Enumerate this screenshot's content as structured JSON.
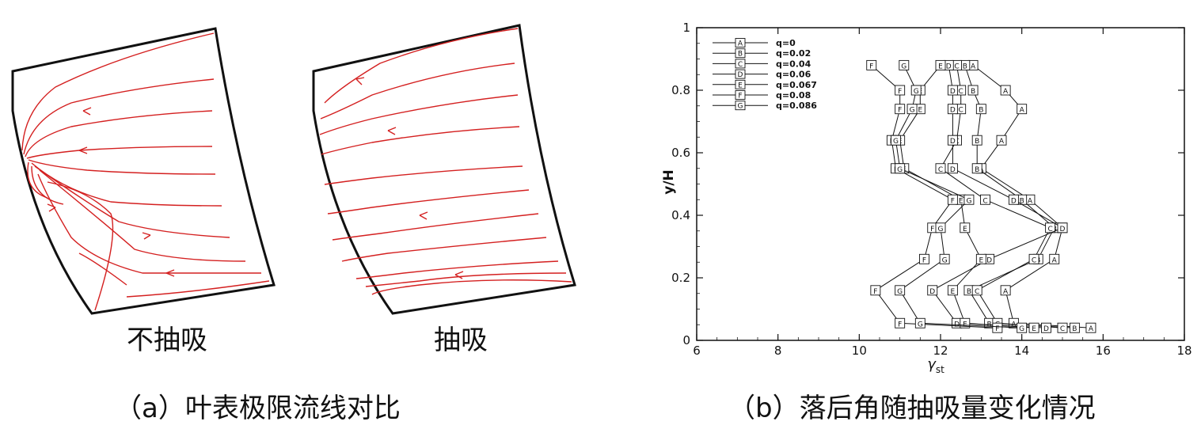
{
  "panel_a": {
    "left_label": "不抽吸",
    "right_label": "抽吸",
    "caption": "（a）叶表极限流线对比",
    "line_color": "#d42020"
  },
  "panel_b": {
    "caption": "（b）落后角随抽吸量变化情况"
  },
  "chart_data": {
    "type": "line",
    "xlabel": "γst",
    "xlabel_main": "γ",
    "xlabel_sub": "st",
    "ylabel": "y/H",
    "xlim": [
      6,
      18
    ],
    "ylim": [
      0,
      1
    ],
    "xticks": [
      "6",
      "8",
      "10",
      "12",
      "14",
      "16",
      "18"
    ],
    "yticks": [
      "0",
      "0.2",
      "0.4",
      "0.6",
      "0.8",
      "1"
    ],
    "legend_position": "top-left",
    "y": [
      0.04,
      0.055,
      0.16,
      0.26,
      0.36,
      0.45,
      0.55,
      0.64,
      0.74,
      0.8,
      0.88
    ],
    "series": [
      {
        "marker": "A",
        "name": "q=0",
        "x": [
          15.7,
          13.8,
          13.6,
          14.8,
          15.0,
          14.2,
          13.0,
          13.5,
          14.0,
          13.6,
          12.8
        ]
      },
      {
        "marker": "B",
        "name": "q=0.02",
        "x": [
          15.3,
          13.2,
          12.7,
          14.4,
          14.8,
          14.0,
          12.9,
          12.9,
          13.0,
          12.8,
          12.6
        ]
      },
      {
        "marker": "C",
        "name": "q=0.04",
        "x": [
          15.0,
          13.4,
          12.9,
          14.3,
          14.7,
          13.1,
          12.0,
          12.4,
          12.5,
          12.5,
          12.4
        ]
      },
      {
        "marker": "D",
        "name": "q=0.06",
        "x": [
          14.6,
          12.4,
          11.8,
          13.2,
          15.0,
          13.8,
          12.3,
          12.3,
          12.3,
          12.3,
          12.2
        ]
      },
      {
        "marker": "E",
        "name": "q=0.067",
        "x": [
          14.3,
          12.6,
          12.3,
          13.0,
          12.6,
          12.5,
          11.1,
          11.0,
          11.5,
          11.5,
          12.0
        ]
      },
      {
        "marker": "F",
        "name": "q=0.08",
        "x": [
          13.4,
          11.0,
          10.4,
          11.6,
          11.8,
          12.3,
          10.9,
          10.8,
          11.0,
          11.0,
          10.3
        ]
      },
      {
        "marker": "G",
        "name": "q=0.086",
        "x": [
          14.0,
          11.5,
          11.0,
          12.1,
          12.0,
          12.7,
          11.0,
          10.9,
          11.3,
          11.4,
          11.1
        ]
      }
    ]
  }
}
